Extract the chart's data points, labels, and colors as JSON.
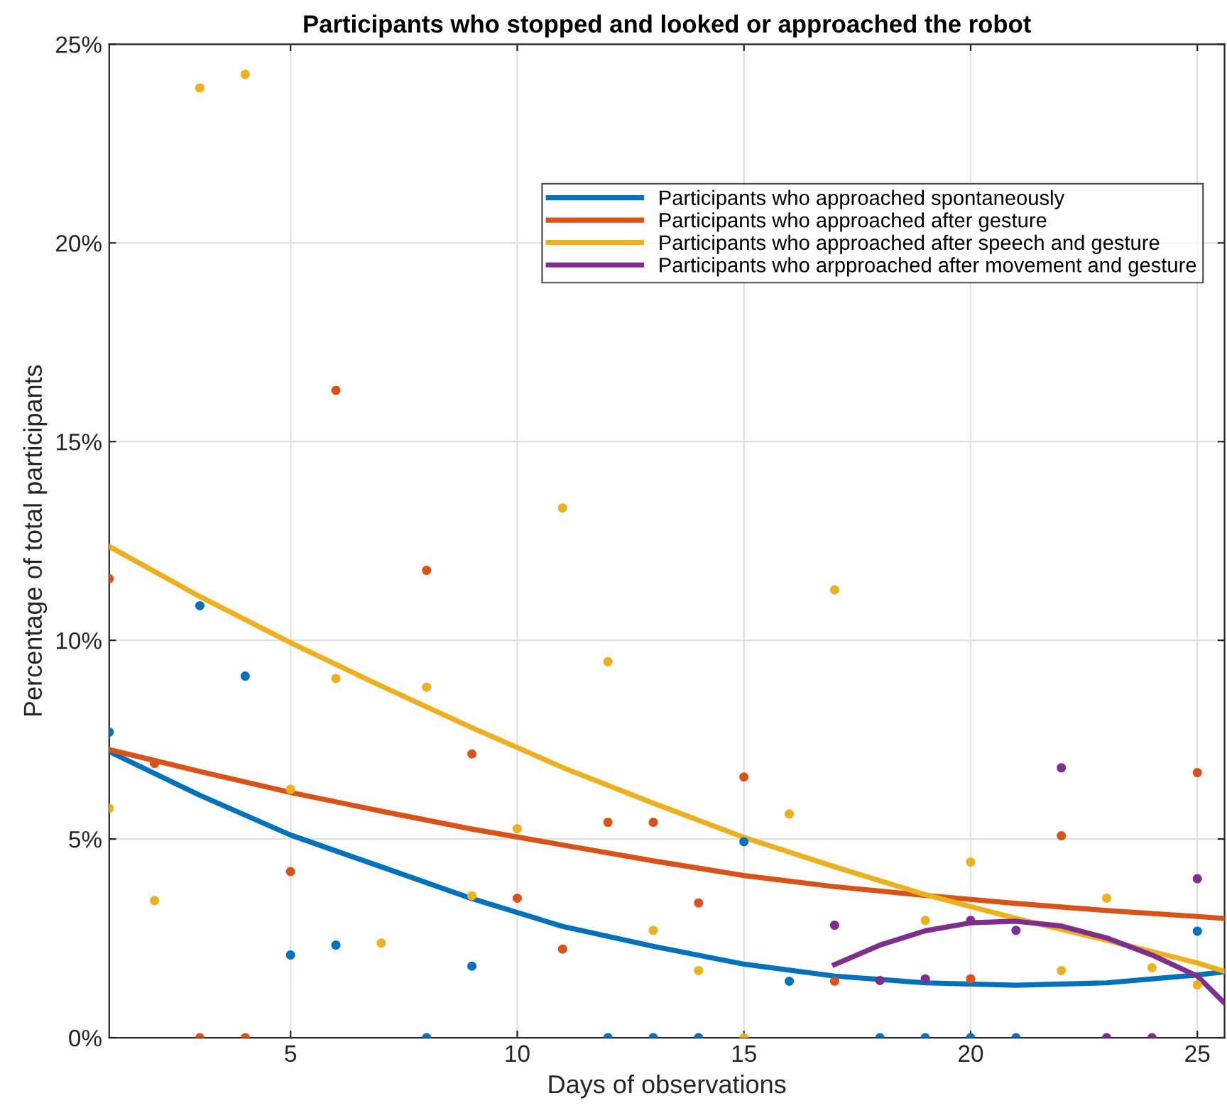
{
  "chart_data": {
    "type": "scatter",
    "title": "Participants who stopped and looked or approached the robot",
    "xlabel": "Days of observations",
    "ylabel": "Percentage of total participants",
    "xlim": [
      1,
      25.6
    ],
    "xticks": [
      5,
      10,
      15,
      20,
      25
    ],
    "ylim": [
      0,
      25
    ],
    "yticks": [
      {
        "value": 0,
        "label": "0%"
      },
      {
        "value": 5,
        "label": "5%"
      },
      {
        "value": 10,
        "label": "10%"
      },
      {
        "value": 15,
        "label": "15%"
      },
      {
        "value": 20,
        "label": "20%"
      },
      {
        "value": 25,
        "label": "25%"
      }
    ],
    "grid": true,
    "legend": "top right",
    "marker": "circle",
    "series": [
      {
        "color": "#0072bd",
        "x": [
          1,
          3,
          4,
          5,
          6,
          8,
          9,
          12,
          13,
          14,
          15,
          16,
          18,
          19,
          20,
          21,
          25
        ],
        "values": [
          7.69,
          10.87,
          9.1,
          2.08,
          2.33,
          0,
          1.8,
          0,
          0,
          0,
          4.93,
          1.42,
          0,
          0,
          0,
          0,
          2.68
        ]
      },
      {
        "color": "#d95319",
        "x": [
          1,
          2,
          3,
          4,
          5,
          6,
          8,
          9,
          10,
          11,
          12,
          13,
          14,
          15,
          17,
          20,
          22,
          25
        ],
        "values": [
          11.55,
          6.9,
          0,
          0,
          4.18,
          16.29,
          11.76,
          7.14,
          3.51,
          2.23,
          5.42,
          5.42,
          3.39,
          6.56,
          1.42,
          1.48,
          5.08,
          6.67
        ]
      },
      {
        "color": "#edb120",
        "x": [
          1,
          2,
          3,
          4,
          5,
          6,
          7,
          8,
          9,
          10,
          11,
          12,
          13,
          14,
          15,
          16,
          17,
          19,
          20,
          22,
          23,
          24,
          25
        ],
        "values": [
          5.77,
          3.45,
          23.9,
          24.24,
          6.25,
          9.04,
          2.38,
          8.82,
          3.57,
          5.26,
          13.33,
          9.46,
          2.7,
          1.69,
          0,
          5.63,
          11.27,
          2.95,
          4.42,
          1.69,
          3.51,
          1.76,
          1.33
        ]
      },
      {
        "color": "#7e2f8e",
        "x": [
          17,
          18,
          19,
          20,
          21,
          22,
          23,
          24,
          25
        ],
        "values": [
          2.83,
          1.44,
          1.48,
          2.95,
          2.7,
          6.79,
          0,
          0,
          4.0
        ]
      },
      {
        "type": "line",
        "marker": "none",
        "name": "Participants who approached spontaneously",
        "color": "#0072bd",
        "x": [
          1,
          3,
          5,
          7,
          9,
          11,
          13,
          15,
          17,
          19,
          21,
          23,
          25,
          25.6
        ],
        "values": [
          7.2,
          6.1,
          5.1,
          4.3,
          3.5,
          2.8,
          2.3,
          1.85,
          1.55,
          1.38,
          1.32,
          1.38,
          1.58,
          1.66
        ]
      },
      {
        "type": "line",
        "marker": "none",
        "name": "Participants who approached after gesture",
        "color": "#d95319",
        "x": [
          1,
          3,
          5,
          7,
          9,
          11,
          13,
          15,
          17,
          19,
          21,
          23,
          25,
          25.6
        ],
        "values": [
          7.25,
          6.7,
          6.17,
          5.7,
          5.25,
          4.85,
          4.45,
          4.08,
          3.8,
          3.58,
          3.38,
          3.2,
          3.05,
          3.0
        ]
      },
      {
        "type": "line",
        "marker": "none",
        "name": "Participants who approached after speech and gesture",
        "color": "#edb120",
        "x": [
          1,
          3,
          5,
          7,
          9,
          11,
          13,
          15,
          17,
          19,
          21,
          23,
          25,
          25.6
        ],
        "values": [
          12.36,
          11.1,
          9.94,
          8.85,
          7.8,
          6.8,
          5.9,
          5.04,
          4.3,
          3.6,
          3.0,
          2.45,
          1.88,
          1.67
        ]
      },
      {
        "type": "line",
        "marker": "none",
        "name": "Participants who arpproached after movement and gesture",
        "color": "#7e2f8e",
        "x": [
          17,
          18,
          19,
          20,
          21,
          22,
          23,
          24,
          25,
          25.6
        ],
        "values": [
          1.84,
          2.33,
          2.69,
          2.89,
          2.93,
          2.81,
          2.51,
          2.08,
          1.55,
          0.87
        ]
      }
    ]
  }
}
